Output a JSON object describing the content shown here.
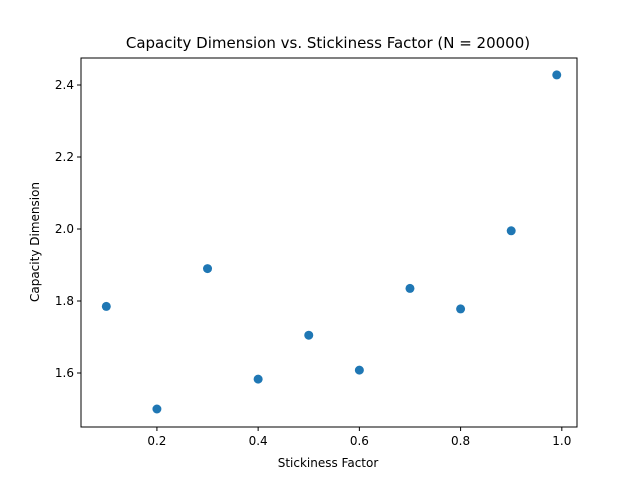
{
  "chart_data": {
    "type": "scatter",
    "title": "Capacity Dimension vs. Stickiness Factor (N = 20000)",
    "xlabel": "Stickiness Factor",
    "ylabel": "Capacity Dimension",
    "xlim": [
      0.05,
      1.03
    ],
    "ylim": [
      1.45,
      2.475
    ],
    "xticks": [
      0.2,
      0.4,
      0.6,
      0.8,
      1.0
    ],
    "xtick_labels": [
      "0.2",
      "0.4",
      "0.6",
      "0.8",
      "1.0"
    ],
    "yticks": [
      1.6,
      1.8,
      2.0,
      2.2,
      2.4
    ],
    "ytick_labels": [
      "1.6",
      "1.8",
      "2.0",
      "2.2",
      "2.4"
    ],
    "grid": false,
    "legend": "none",
    "marker_color": "#1f77b4",
    "x": [
      0.1,
      0.2,
      0.3,
      0.4,
      0.5,
      0.6,
      0.7,
      0.8,
      0.9,
      0.99
    ],
    "y": [
      1.785,
      1.5,
      1.89,
      1.583,
      1.705,
      1.608,
      1.835,
      1.778,
      1.995,
      2.428
    ]
  }
}
